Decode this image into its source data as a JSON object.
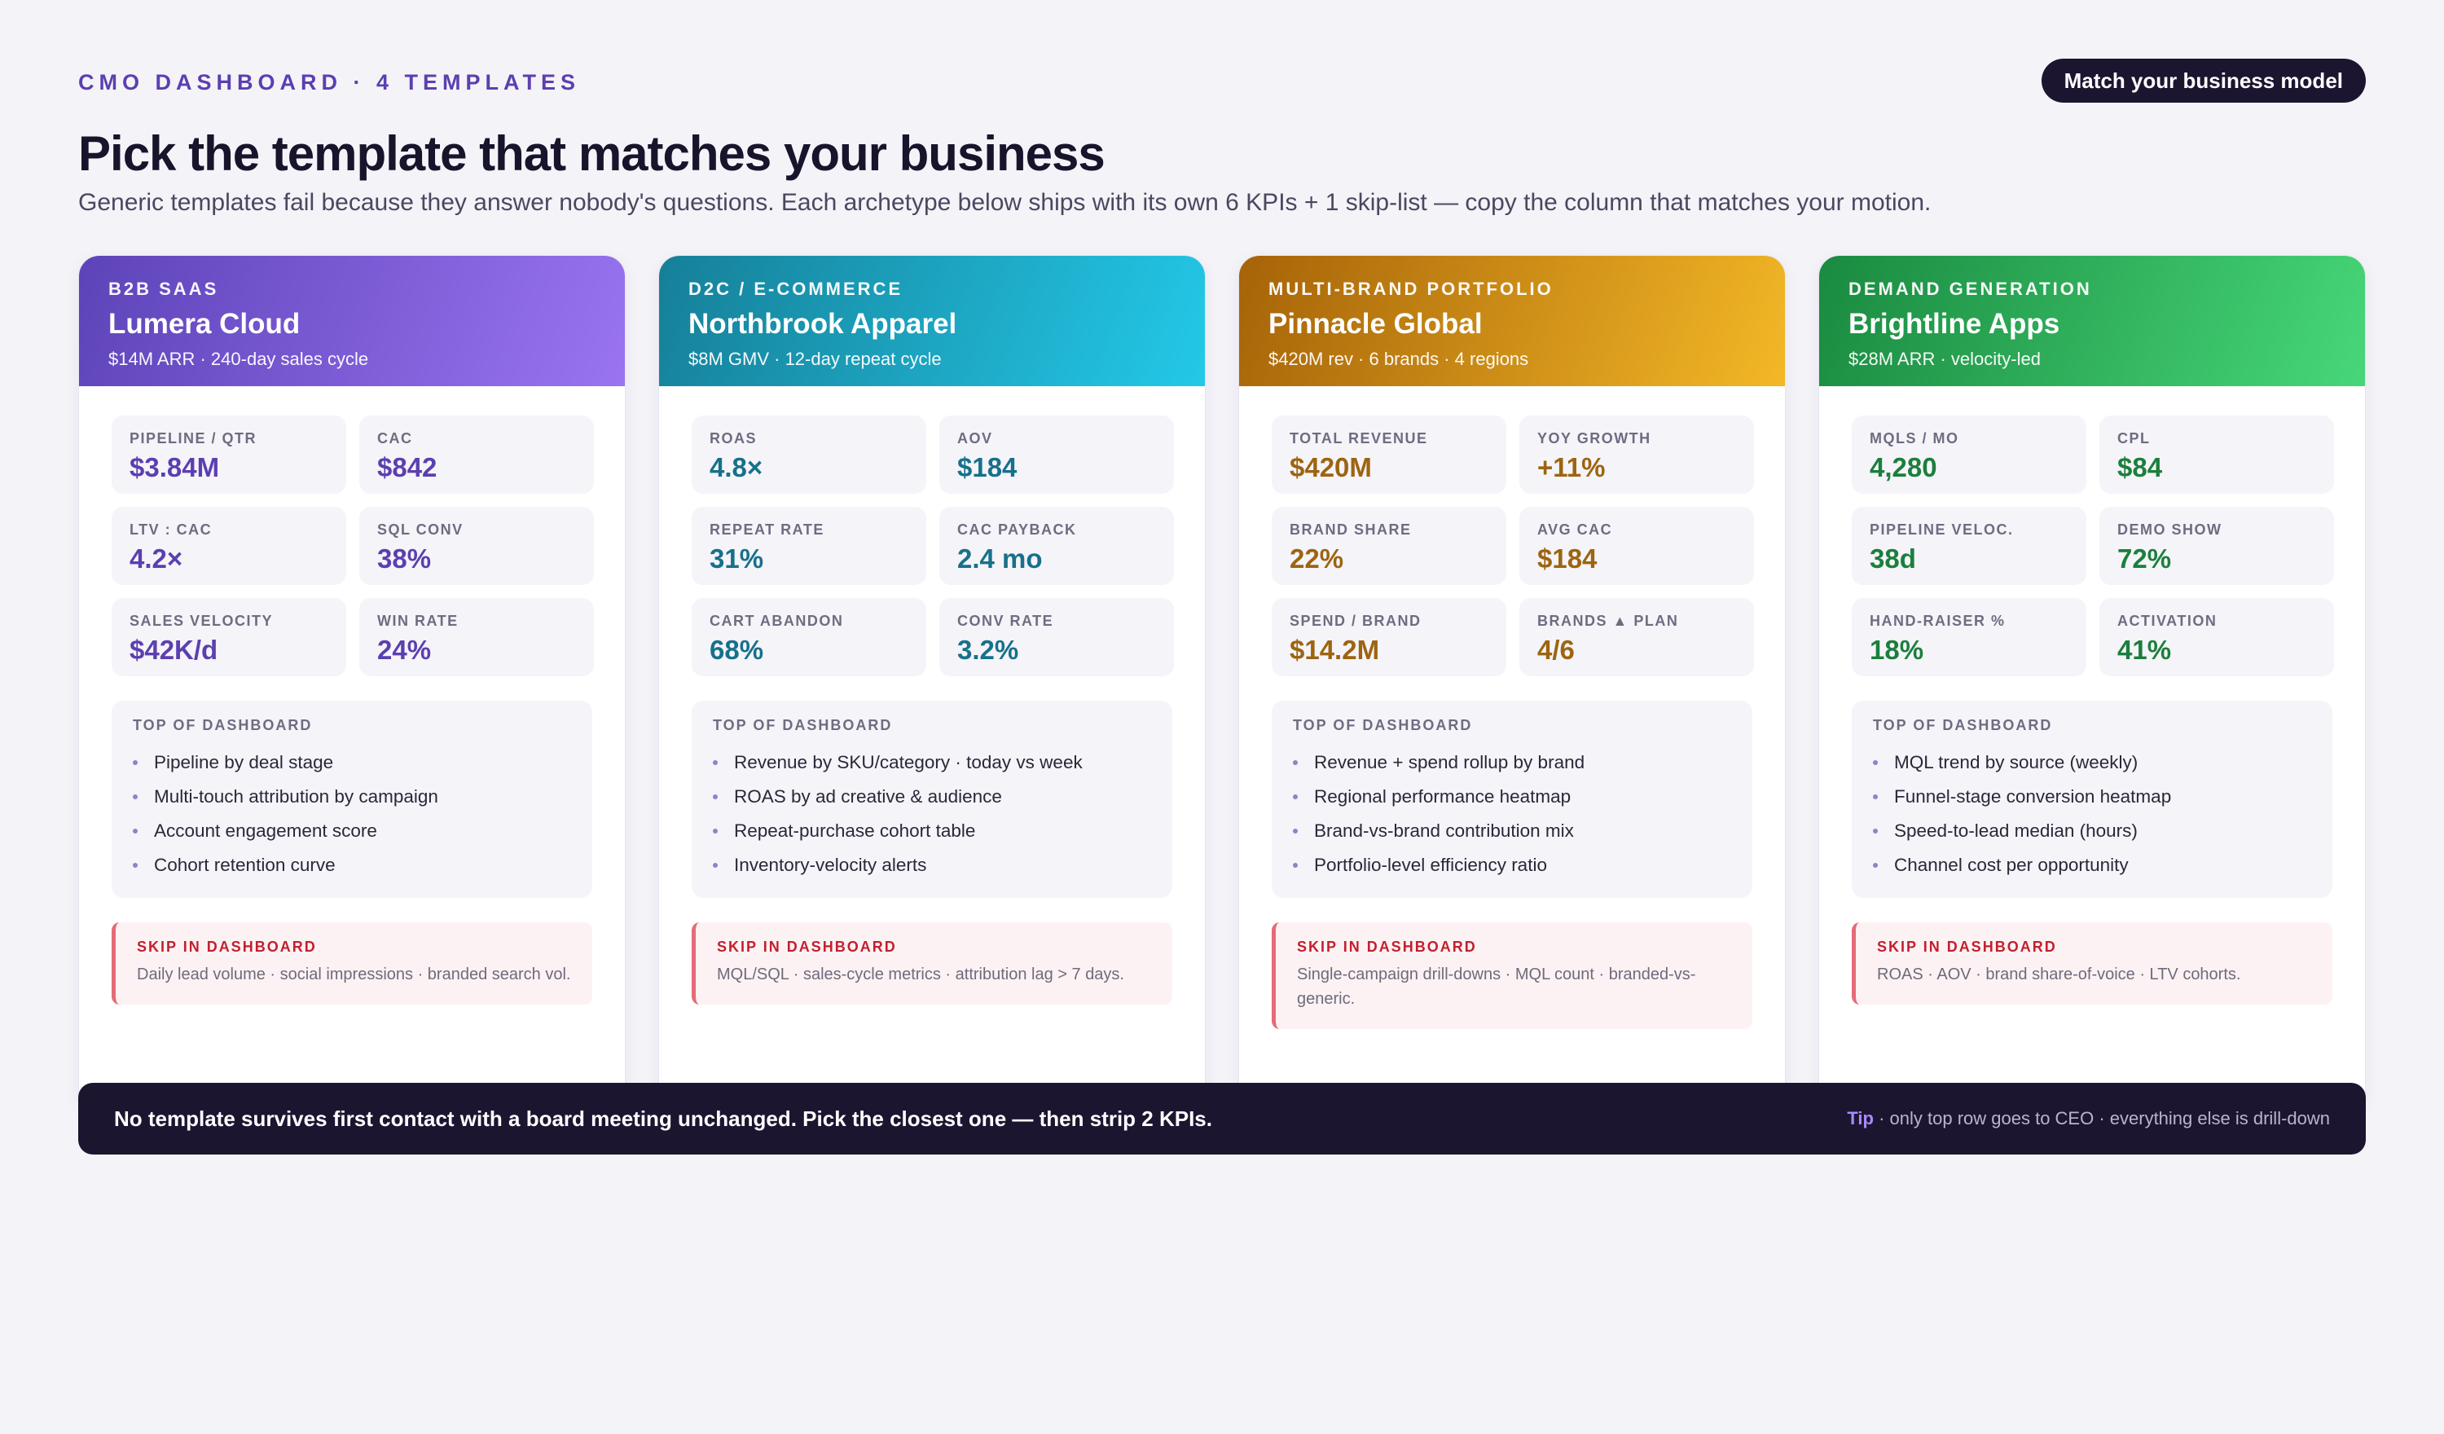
{
  "header": {
    "eyebrow": "CMO DASHBOARD · 4 TEMPLATES",
    "cta_label": "Match your business model",
    "title": "Pick the template that matches your business",
    "subtitle": "Generic templates fail because they answer nobody's questions. Each archetype below ships with its own 6 KPIs + 1 skip-list — copy the column that matches your motion."
  },
  "labels": {
    "top_of_dashboard": "TOP OF DASHBOARD",
    "skip_in_dashboard": "SKIP IN DASHBOARD"
  },
  "colors": {
    "b2b_saas": "#5b3fb0",
    "d2c": "#16718a",
    "multi_brand": "#9d6410",
    "demand_gen": "#1b7f3c",
    "skip_accent": "#c21f2e",
    "dark_bar": "#1c1530"
  },
  "cards": [
    {
      "archetype": "B2B SAAS",
      "company": "Lumera Cloud",
      "meta": "$14M ARR · 240-day sales cycle",
      "kpis": [
        {
          "label": "PIPELINE / QTR",
          "value": "$3.84M"
        },
        {
          "label": "CAC",
          "value": "$842"
        },
        {
          "label": "LTV : CAC",
          "value": "4.2×"
        },
        {
          "label": "SQL CONV",
          "value": "38%"
        },
        {
          "label": "SALES VELOCITY",
          "value": "$42K/d"
        },
        {
          "label": "WIN RATE",
          "value": "24%"
        }
      ],
      "top": [
        "Pipeline by deal stage",
        "Multi-touch attribution by campaign",
        "Account engagement score",
        "Cohort retention curve"
      ],
      "skip": "Daily lead volume · social impressions · branded search vol."
    },
    {
      "archetype": "D2C / E-COMMERCE",
      "company": "Northbrook Apparel",
      "meta": "$8M GMV · 12-day repeat cycle",
      "kpis": [
        {
          "label": "ROAS",
          "value": "4.8×"
        },
        {
          "label": "AOV",
          "value": "$184"
        },
        {
          "label": "REPEAT RATE",
          "value": "31%"
        },
        {
          "label": "CAC PAYBACK",
          "value": "2.4 mo"
        },
        {
          "label": "CART ABANDON",
          "value": "68%"
        },
        {
          "label": "CONV RATE",
          "value": "3.2%"
        }
      ],
      "top": [
        "Revenue by SKU/category · today vs week",
        "ROAS by ad creative & audience",
        "Repeat-purchase cohort table",
        "Inventory-velocity alerts"
      ],
      "skip": "MQL/SQL · sales-cycle metrics · attribution lag > 7 days."
    },
    {
      "archetype": "MULTI-BRAND PORTFOLIO",
      "company": "Pinnacle Global",
      "meta": "$420M rev · 6 brands · 4 regions",
      "kpis": [
        {
          "label": "TOTAL REVENUE",
          "value": "$420M"
        },
        {
          "label": "YOY GROWTH",
          "value": "+11%"
        },
        {
          "label": "BRAND SHARE",
          "value": "22%"
        },
        {
          "label": "AVG CAC",
          "value": "$184"
        },
        {
          "label": "SPEND / BRAND",
          "value": "$14.2M"
        },
        {
          "label": "BRANDS ▲ PLAN",
          "value": "4/6"
        }
      ],
      "top": [
        "Revenue + spend rollup by brand",
        "Regional performance heatmap",
        "Brand-vs-brand contribution mix",
        "Portfolio-level efficiency ratio"
      ],
      "skip": "Single-campaign drill-downs · MQL count · branded-vs-generic."
    },
    {
      "archetype": "DEMAND GENERATION",
      "company": "Brightline Apps",
      "meta": "$28M ARR · velocity-led",
      "kpis": [
        {
          "label": "MQLS / MO",
          "value": "4,280"
        },
        {
          "label": "CPL",
          "value": "$84"
        },
        {
          "label": "PIPELINE VELOC.",
          "value": "38d"
        },
        {
          "label": "DEMO SHOW",
          "value": "72%"
        },
        {
          "label": "HAND-RAISER %",
          "value": "18%"
        },
        {
          "label": "ACTIVATION",
          "value": "41%"
        }
      ],
      "top": [
        "MQL trend by source (weekly)",
        "Funnel-stage conversion heatmap",
        "Speed-to-lead median (hours)",
        "Channel cost per opportunity"
      ],
      "skip": "ROAS · AOV · brand share-of-voice · LTV cohorts."
    }
  ],
  "footer": {
    "message": "No template survives first contact with a board meeting unchanged. Pick the closest one — then strip 2 KPIs.",
    "tip_label": "Tip",
    "tip_text": " · only top row goes to CEO · everything else is drill-down"
  }
}
